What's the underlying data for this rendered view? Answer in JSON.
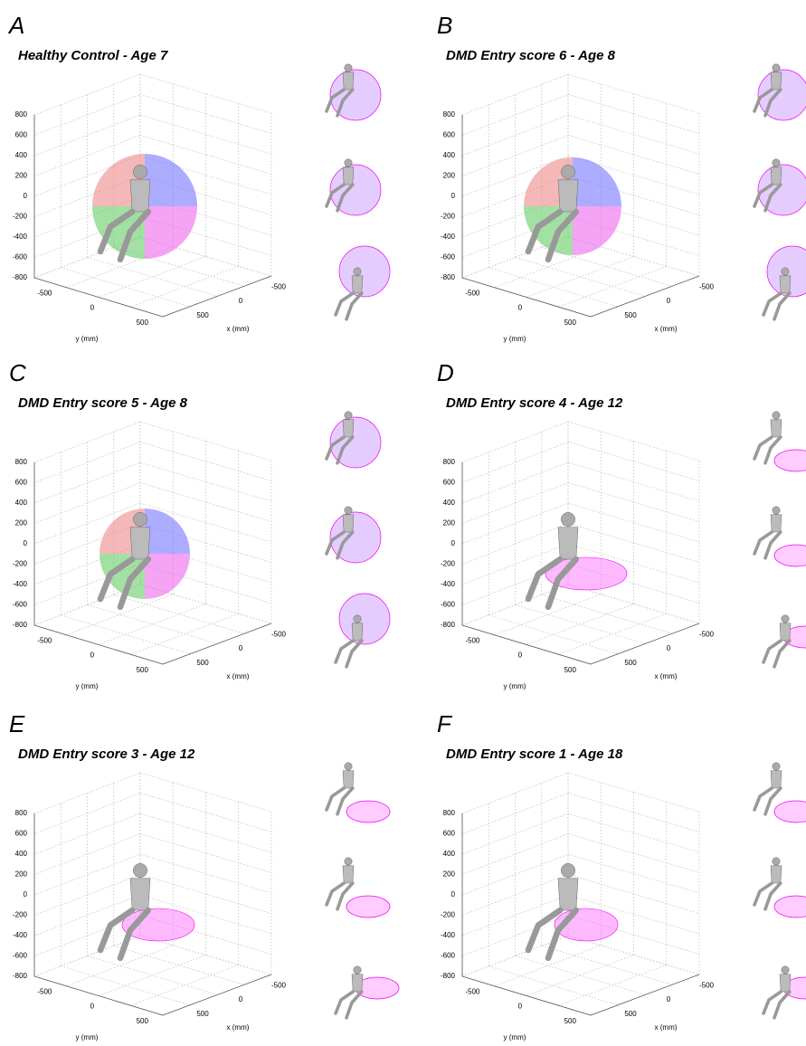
{
  "axes": {
    "z_ticks": [
      "800",
      "600",
      "400",
      "200",
      "0",
      "-200",
      "-400",
      "-600",
      "-800"
    ],
    "y_ticks": [
      "-500",
      "0",
      "500"
    ],
    "x_ticks": [
      "500",
      "0",
      "-500"
    ],
    "y_label": "y (mm)",
    "x_label": "x (mm)"
  },
  "panels": [
    {
      "letter": "A",
      "title": "Healthy Control - Age 7"
    },
    {
      "letter": "B",
      "title": "DMD Entry score 6 - Age 8"
    },
    {
      "letter": "C",
      "title": "DMD Entry score 5 - Age 8"
    },
    {
      "letter": "D",
      "title": "DMD Entry score 4 - Age 12"
    },
    {
      "letter": "E",
      "title": "DMD Entry score 3 - Age 12"
    },
    {
      "letter": "F",
      "title": "DMD Entry score 1 - Age 18"
    }
  ]
}
